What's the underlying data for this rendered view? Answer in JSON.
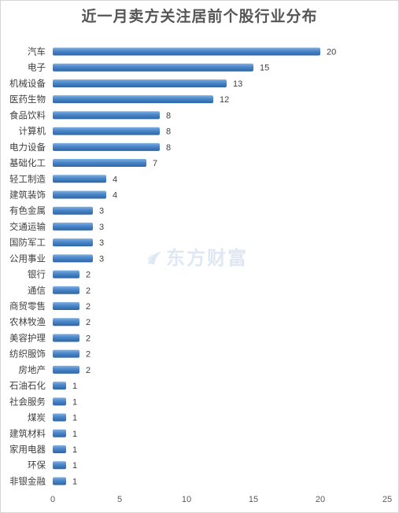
{
  "chart_data": {
    "type": "bar",
    "orientation": "horizontal",
    "title": "近一月卖方关注居前个股行业分布",
    "categories": [
      "汽车",
      "电子",
      "机械设备",
      "医药生物",
      "食品饮料",
      "计算机",
      "电力设备",
      "基础化工",
      "轻工制造",
      "建筑装饰",
      "有色金属",
      "交通运输",
      "国防军工",
      "公用事业",
      "银行",
      "通信",
      "商贸零售",
      "农林牧渔",
      "美容护理",
      "纺织服饰",
      "房地产",
      "石油石化",
      "社会服务",
      "煤炭",
      "建筑材料",
      "家用电器",
      "环保",
      "非银金融"
    ],
    "values": [
      20,
      15,
      13,
      12,
      8,
      8,
      8,
      7,
      4,
      4,
      3,
      3,
      3,
      3,
      2,
      2,
      2,
      2,
      2,
      2,
      2,
      1,
      1,
      1,
      1,
      1,
      1,
      1
    ],
    "xlim": [
      0,
      25
    ],
    "xticks": [
      0,
      5,
      10,
      15,
      20,
      25
    ],
    "xlabel": "",
    "ylabel": "",
    "grid": false,
    "legend": "none",
    "bar_color": "#4a86c8",
    "bar_color_light": "#7fb0e3",
    "bar_color_dark": "#2e66a6"
  },
  "watermark": {
    "text": "东方财富",
    "icon": "eastmoney-logo-icon"
  }
}
